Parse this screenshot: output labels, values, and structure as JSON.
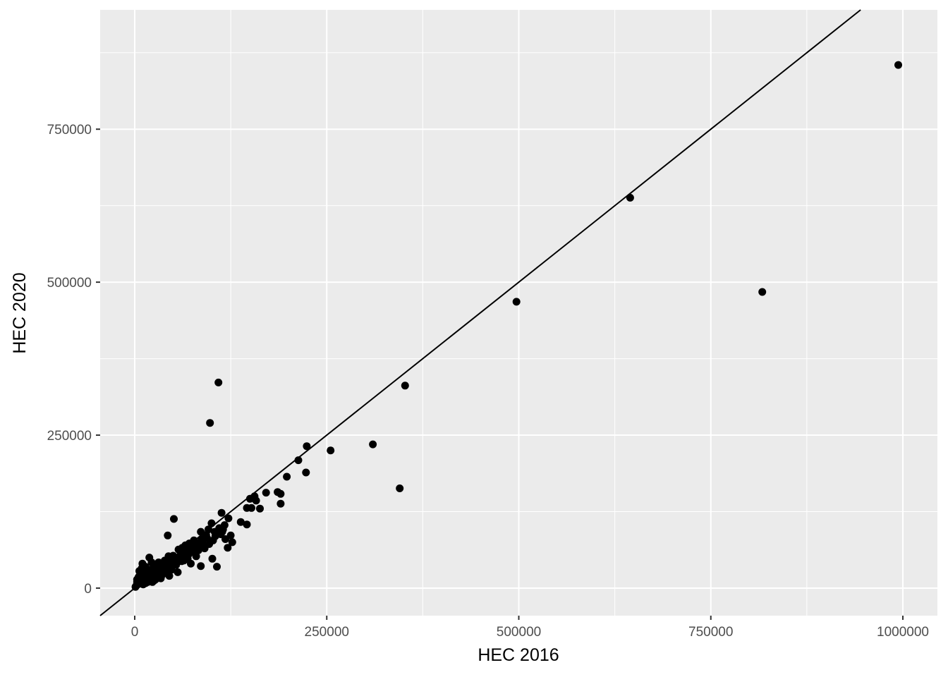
{
  "chart_data": {
    "type": "scatter",
    "title": "",
    "xlabel": "HEC 2016",
    "ylabel": "HEC 2020",
    "xlim": [
      -45000,
      1045000
    ],
    "ylim": [
      -45000,
      945000
    ],
    "x_ticks": [
      0,
      250000,
      500000,
      750000,
      1000000
    ],
    "x_tick_labels": [
      "0",
      "250000",
      "500000",
      "750000",
      "1000000"
    ],
    "y_ticks": [
      0,
      250000,
      500000,
      750000
    ],
    "y_tick_labels": [
      "0",
      "250000",
      "500000",
      "750000"
    ],
    "grid": true,
    "legend": "none",
    "reference_line": {
      "type": "identity",
      "slope": 1,
      "intercept": 0
    },
    "colors": {
      "panel_background": "#ebebeb",
      "grid": "#ffffff",
      "points": "#000000",
      "line": "#000000"
    },
    "points": [
      [
        994000,
        855000
      ],
      [
        645000,
        638000
      ],
      [
        817000,
        484000
      ],
      [
        497000,
        468000
      ],
      [
        352000,
        331000
      ],
      [
        345000,
        163000
      ],
      [
        310000,
        235000
      ],
      [
        255000,
        225000
      ],
      [
        224000,
        232000
      ],
      [
        223000,
        189000
      ],
      [
        213000,
        209000
      ],
      [
        198000,
        182000
      ],
      [
        190000,
        154000
      ],
      [
        190000,
        138000
      ],
      [
        186000,
        157000
      ],
      [
        171000,
        156000
      ],
      [
        163000,
        130000
      ],
      [
        158000,
        143000
      ],
      [
        156000,
        150000
      ],
      [
        152000,
        131000
      ],
      [
        150000,
        146000
      ],
      [
        146000,
        131000
      ],
      [
        146000,
        104000
      ],
      [
        138000,
        108000
      ],
      [
        127000,
        75000
      ],
      [
        125000,
        86000
      ],
      [
        122000,
        114000
      ],
      [
        121000,
        66000
      ],
      [
        118000,
        80000
      ],
      [
        117000,
        103000
      ],
      [
        115000,
        96000
      ],
      [
        113000,
        123000
      ],
      [
        112000,
        88000
      ],
      [
        109000,
        336000
      ],
      [
        107000,
        35000
      ],
      [
        105000,
        85000
      ],
      [
        102000,
        78000
      ],
      [
        101000,
        48000
      ],
      [
        100000,
        106000
      ],
      [
        98000,
        270000
      ],
      [
        96000,
        96000
      ],
      [
        93000,
        87000
      ],
      [
        91000,
        65000
      ],
      [
        89000,
        68000
      ],
      [
        87000,
        80000
      ],
      [
        86000,
        92000
      ],
      [
        86000,
        36000
      ],
      [
        82000,
        73000
      ],
      [
        80000,
        52000
      ],
      [
        78000,
        64000
      ],
      [
        77000,
        78000
      ],
      [
        75000,
        60000
      ],
      [
        74000,
        68000
      ],
      [
        73000,
        40000
      ],
      [
        71000,
        73000
      ],
      [
        70000,
        55000
      ],
      [
        68000,
        63000
      ],
      [
        66000,
        70000
      ],
      [
        64000,
        45000
      ],
      [
        62000,
        66000
      ],
      [
        60000,
        58000
      ],
      [
        58000,
        50000
      ],
      [
        57000,
        63000
      ],
      [
        56000,
        26000
      ],
      [
        55000,
        42000
      ],
      [
        53000,
        48000
      ],
      [
        51000,
        113000
      ],
      [
        50000,
        53000
      ],
      [
        48000,
        35000
      ],
      [
        47000,
        44000
      ],
      [
        45000,
        20000
      ],
      [
        44000,
        52000
      ],
      [
        43000,
        86000
      ],
      [
        42000,
        38000
      ],
      [
        40000,
        30000
      ],
      [
        39000,
        45000
      ],
      [
        38000,
        25000
      ],
      [
        37000,
        40000
      ],
      [
        36000,
        28000
      ],
      [
        35000,
        33000
      ],
      [
        34000,
        16000
      ],
      [
        33000,
        38000
      ],
      [
        32000,
        22000
      ],
      [
        31000,
        42000
      ],
      [
        30000,
        27000
      ],
      [
        29000,
        18000
      ],
      [
        28000,
        32000
      ],
      [
        27000,
        24000
      ],
      [
        26000,
        36000
      ],
      [
        25000,
        12000
      ],
      [
        24000,
        28000
      ],
      [
        23000,
        20000
      ],
      [
        22000,
        42000
      ],
      [
        21000,
        15000
      ],
      [
        20000,
        30000
      ],
      [
        19000,
        50000
      ],
      [
        18000,
        22000
      ],
      [
        17000,
        18000
      ],
      [
        16000,
        28000
      ],
      [
        15000,
        12000
      ],
      [
        14000,
        35000
      ],
      [
        13000,
        20000
      ],
      [
        12000,
        10000
      ],
      [
        11000,
        25000
      ],
      [
        10000,
        40000
      ],
      [
        9000,
        15000
      ],
      [
        8000,
        8000
      ],
      [
        7000,
        22000
      ],
      [
        6000,
        12000
      ],
      [
        5000,
        18000
      ],
      [
        4000,
        6000
      ],
      [
        3000,
        10000
      ],
      [
        2000,
        4000
      ],
      [
        1000,
        2000
      ],
      [
        3000,
        14000
      ],
      [
        5000,
        9000
      ],
      [
        8000,
        16000
      ],
      [
        12000,
        20000
      ],
      [
        15000,
        25000
      ],
      [
        18000,
        30000
      ],
      [
        21000,
        24000
      ],
      [
        24000,
        18000
      ],
      [
        27000,
        14000
      ],
      [
        30000,
        35000
      ],
      [
        33000,
        28000
      ],
      [
        36000,
        22000
      ],
      [
        39000,
        32000
      ],
      [
        42000,
        25000
      ],
      [
        45000,
        40000
      ],
      [
        48000,
        30000
      ],
      [
        52000,
        45000
      ],
      [
        54000,
        38000
      ],
      [
        59000,
        52000
      ],
      [
        61000,
        44000
      ],
      [
        65000,
        55000
      ],
      [
        67000,
        60000
      ],
      [
        69000,
        48000
      ],
      [
        72000,
        58000
      ],
      [
        76000,
        66000
      ],
      [
        79000,
        70000
      ],
      [
        83000,
        62000
      ],
      [
        88000,
        75000
      ],
      [
        94000,
        82000
      ],
      [
        97000,
        72000
      ],
      [
        104000,
        92000
      ],
      [
        110000,
        98000
      ],
      [
        114000,
        92000
      ],
      [
        6000,
        28000
      ],
      [
        9000,
        32000
      ],
      [
        11000,
        6000
      ],
      [
        14000,
        8000
      ],
      [
        17000,
        10000
      ],
      [
        20000,
        12000
      ],
      [
        23000,
        10000
      ],
      [
        26000,
        15000
      ]
    ]
  }
}
